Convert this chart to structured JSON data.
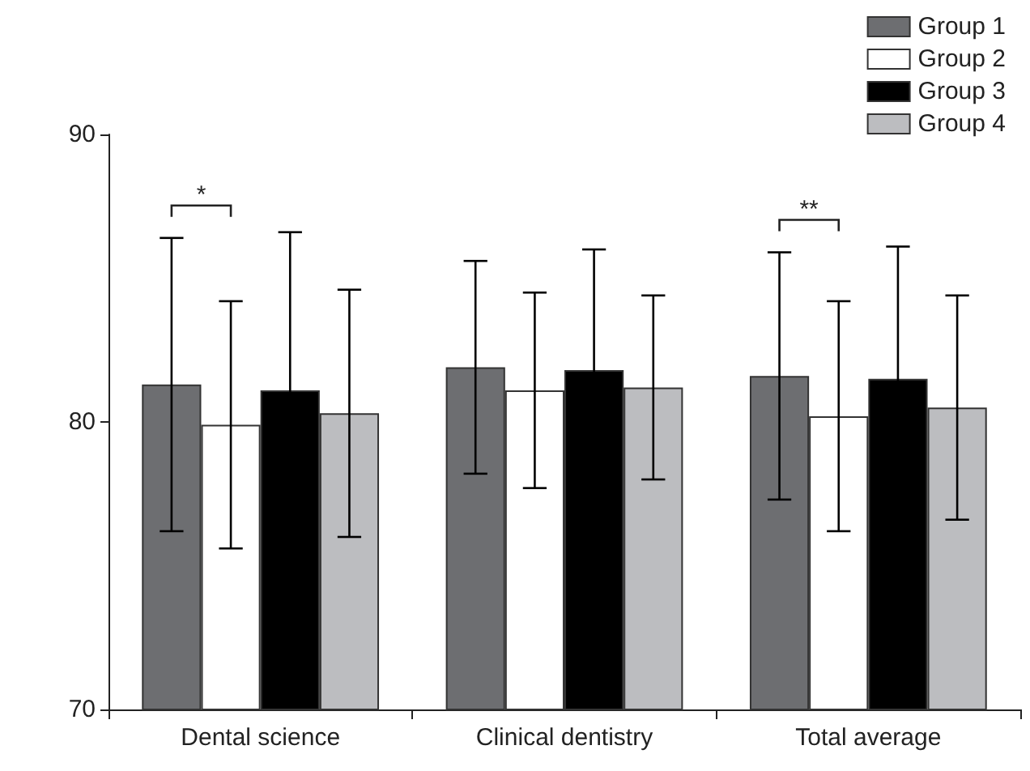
{
  "chart_data": {
    "type": "bar",
    "categories": [
      "Dental science",
      "Clinical dentistry",
      "Total average"
    ],
    "series": [
      {
        "name": "Group 1",
        "color": "#6d6e71",
        "values": [
          81.3,
          81.9,
          81.6
        ],
        "errors": [
          5.1,
          3.7,
          4.3
        ]
      },
      {
        "name": "Group 2",
        "color": "#ffffff",
        "values": [
          79.9,
          81.1,
          80.2
        ],
        "errors": [
          4.3,
          3.4,
          4.0
        ]
      },
      {
        "name": "Group 3",
        "color": "#000000",
        "values": [
          81.1,
          81.8,
          81.5
        ],
        "errors": [
          5.5,
          4.2,
          4.6
        ]
      },
      {
        "name": "Group 4",
        "color": "#bcbdc0",
        "values": [
          80.3,
          81.2,
          80.5
        ],
        "errors": [
          4.3,
          3.2,
          3.9
        ]
      }
    ],
    "annotations": [
      "*",
      "**"
    ],
    "ylim": [
      70,
      90
    ],
    "yticks": [
      70,
      80,
      90
    ],
    "grid": false,
    "legend": "top right"
  }
}
